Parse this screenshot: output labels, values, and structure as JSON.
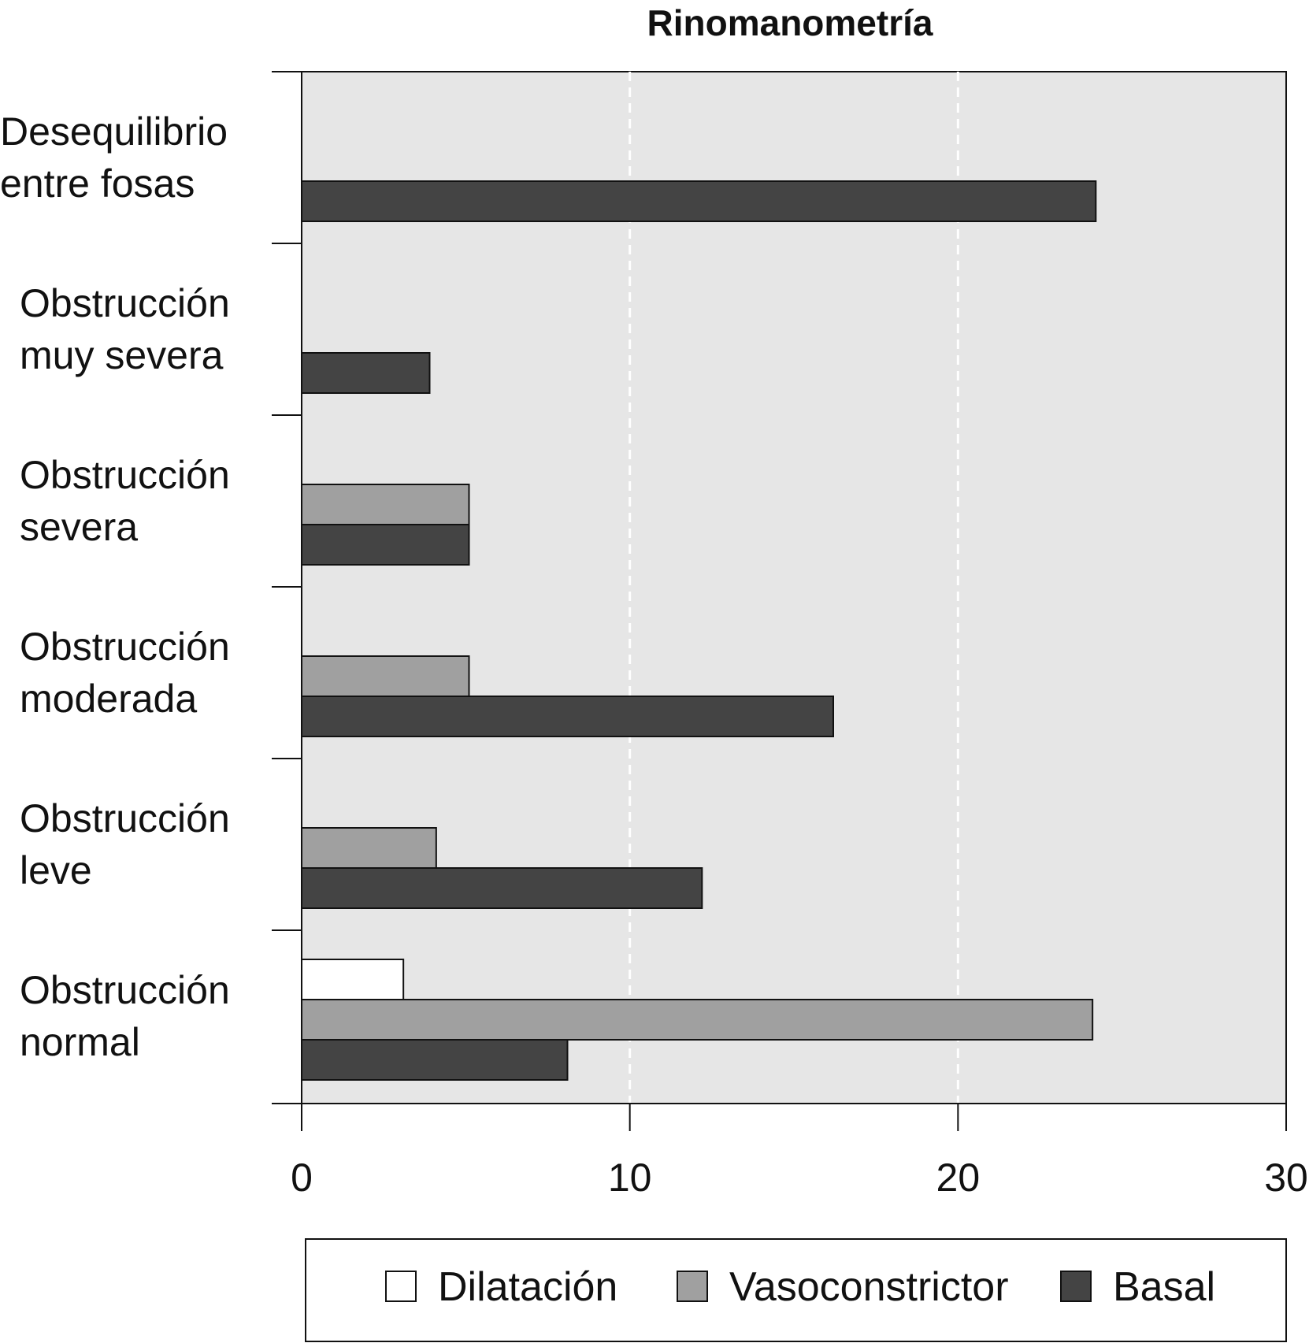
{
  "chart_data": {
    "type": "bar",
    "orientation": "horizontal",
    "title": "Rinomanometría",
    "xlabel": "",
    "ylabel": "",
    "xlim": [
      0,
      30
    ],
    "x_ticks": [
      "0",
      "10",
      "20",
      "30"
    ],
    "grid": "vertical dashed at 10 and 20",
    "legend_position": "bottom",
    "categories": [
      [
        "Desequilibrio",
        "entre fosas"
      ],
      [
        "Obstrucción",
        "muy severa"
      ],
      [
        "Obstrucción",
        "severa"
      ],
      [
        "Obstrucción",
        "moderada"
      ],
      [
        "Obstrucción",
        "leve"
      ],
      [
        "Obstrucción",
        "normal"
      ]
    ],
    "series": [
      {
        "name": "Dilatación",
        "color": "#ffffff",
        "values": [
          0,
          0,
          0,
          0,
          0,
          3.1
        ]
      },
      {
        "name": "Vasoconstrictor",
        "color": "#a0a0a0",
        "values": [
          0,
          0,
          5.1,
          5.1,
          4.1,
          24.1
        ]
      },
      {
        "name": "Basal",
        "color": "#444444",
        "values": [
          24.2,
          3.9,
          5.1,
          16.2,
          12.2,
          8.1
        ]
      }
    ]
  }
}
